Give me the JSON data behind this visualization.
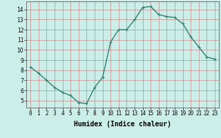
{
  "x": [
    0,
    1,
    2,
    3,
    4,
    5,
    6,
    7,
    8,
    9,
    10,
    11,
    12,
    13,
    14,
    15,
    16,
    17,
    18,
    19,
    20,
    21,
    22,
    23
  ],
  "y": [
    8.3,
    7.7,
    7.0,
    6.3,
    5.8,
    5.5,
    4.8,
    4.7,
    6.3,
    7.3,
    10.8,
    12.0,
    12.0,
    13.0,
    14.2,
    14.3,
    13.5,
    13.3,
    13.2,
    12.6,
    11.3,
    10.3,
    9.3,
    9.1
  ],
  "line_color": "#2e7d6e",
  "marker": "+",
  "marker_size": 3,
  "linewidth": 1.0,
  "bg_color": "#cceee8",
  "grid_color": "#c08888",
  "xlabel": "Humidex (Indice chaleur)",
  "xlabel_fontsize": 7,
  "tick_fontsize": 5.5,
  "xlim": [
    -0.5,
    23.5
  ],
  "ylim": [
    4.3,
    14.8
  ],
  "yticks": [
    5,
    6,
    7,
    8,
    9,
    10,
    11,
    12,
    13,
    14
  ],
  "xticks": [
    0,
    1,
    2,
    3,
    4,
    5,
    6,
    7,
    8,
    9,
    10,
    11,
    12,
    13,
    14,
    15,
    16,
    17,
    18,
    19,
    20,
    21,
    22,
    23
  ]
}
